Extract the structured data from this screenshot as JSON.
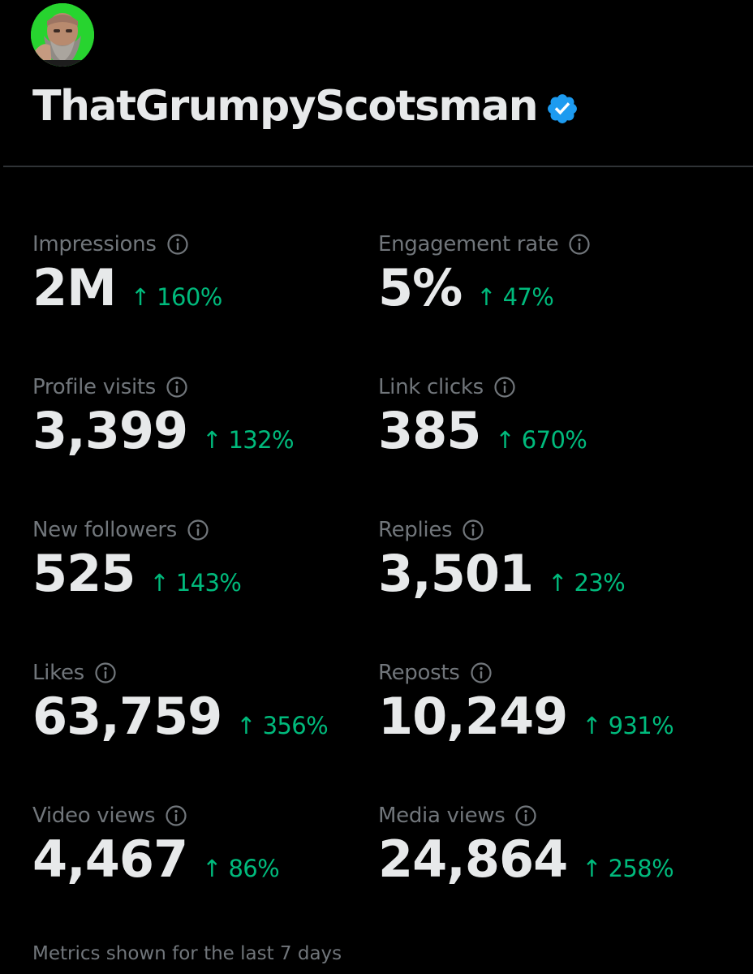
{
  "profile": {
    "display_name": "ThatGrumpyScotsman",
    "verified": true,
    "avatar_icon": "avatar-bearded-man",
    "badge_color": "#1d9bf0"
  },
  "colors": {
    "background": "#000000",
    "primary_text": "#e7e9ea",
    "secondary_text": "#71767b",
    "positive_change": "#00ba7c",
    "divider": "#2f3336"
  },
  "metrics": [
    {
      "label": "Impressions",
      "value": "2M",
      "change": "↑ 160%"
    },
    {
      "label": "Engagement rate",
      "value": "5%",
      "change": "↑ 47%"
    },
    {
      "label": "Profile visits",
      "value": "3,399",
      "change": "↑ 132%"
    },
    {
      "label": "Link clicks",
      "value": "385",
      "change": "↑ 670%"
    },
    {
      "label": "New followers",
      "value": "525",
      "change": "↑ 143%"
    },
    {
      "label": "Replies",
      "value": "3,501",
      "change": "↑ 23%"
    },
    {
      "label": "Likes",
      "value": "63,759",
      "change": "↑ 356%"
    },
    {
      "label": "Reposts",
      "value": "10,249",
      "change": "↑ 931%"
    },
    {
      "label": "Video views",
      "value": "4,467",
      "change": "↑ 86%"
    },
    {
      "label": "Media views",
      "value": "24,864",
      "change": "↑ 258%"
    }
  ],
  "footnote": "Metrics shown for the last 7 days"
}
